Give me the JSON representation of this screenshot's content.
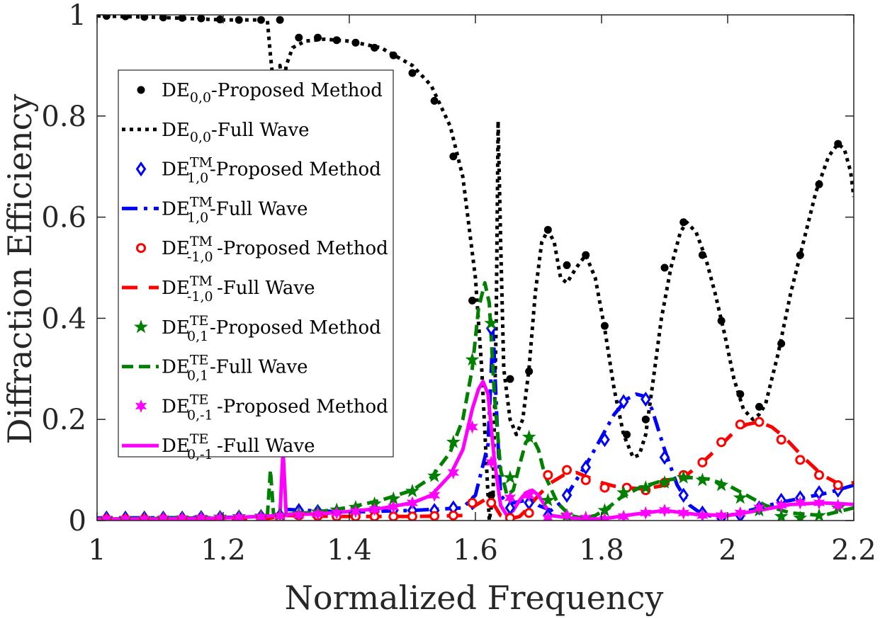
{
  "chart_data": {
    "type": "line",
    "xlabel": "Normalized Frequency",
    "ylabel": "Diffraction Efficiency",
    "xlim": [
      1,
      2.2
    ],
    "ylim": [
      0,
      1
    ],
    "grid": false,
    "legend_position": "upper-left",
    "x_ticks": [
      1,
      1.2,
      1.4,
      1.6,
      1.8,
      2,
      2.2
    ],
    "x_tick_labels": [
      "1",
      "1.2",
      "1.4",
      "1.6",
      "1.8",
      "2",
      "2.2"
    ],
    "y_ticks": [
      0,
      0.2,
      0.4,
      0.6,
      0.8,
      1
    ],
    "y_tick_labels": [
      "0",
      "0.2",
      "0.4",
      "0.6",
      "0.8",
      "1"
    ],
    "series": [
      {
        "name": "DE0,0-Proposed Method",
        "base": "DE",
        "sup": "",
        "sub": "0,0",
        "suffix": "-Proposed Method",
        "kind": "marker",
        "marker": "dot",
        "color": "#000000",
        "x": [
          1.015,
          1.045,
          1.075,
          1.105,
          1.135,
          1.165,
          1.195,
          1.225,
          1.26,
          1.29,
          1.32,
          1.35,
          1.38,
          1.41,
          1.44,
          1.47,
          1.5,
          1.535,
          1.565,
          1.595,
          1.625,
          1.655,
          1.685,
          1.715,
          1.745,
          1.775,
          1.805,
          1.84,
          1.87,
          1.9,
          1.93,
          1.96,
          1.99,
          2.02,
          2.05,
          2.085,
          2.115,
          2.145,
          2.175
        ],
        "y": [
          0.998,
          0.997,
          0.996,
          0.995,
          0.994,
          0.993,
          0.991,
          0.99,
          0.99,
          0.99,
          0.955,
          0.955,
          0.95,
          0.945,
          0.935,
          0.92,
          0.885,
          0.83,
          0.72,
          0.435,
          0.05,
          0.28,
          0.295,
          0.575,
          0.505,
          0.525,
          0.385,
          0.17,
          0.2,
          0.5,
          0.59,
          0.525,
          0.395,
          0.25,
          0.225,
          0.35,
          0.525,
          0.665,
          0.745
        ]
      },
      {
        "name": "DE0,0-Full Wave",
        "base": "DE",
        "sup": "",
        "sub": "0,0",
        "suffix": "-Full Wave",
        "kind": "line",
        "dash": "5 6",
        "width": 5,
        "color": "#000000",
        "x": [
          1.0,
          1.1,
          1.2,
          1.26,
          1.27,
          1.275,
          1.28,
          1.285,
          1.29,
          1.295,
          1.3,
          1.31,
          1.33,
          1.36,
          1.4,
          1.45,
          1.5,
          1.53,
          1.56,
          1.58,
          1.6,
          1.61,
          1.618,
          1.622,
          1.628,
          1.633,
          1.636,
          1.64,
          1.645,
          1.655,
          1.665,
          1.675,
          1.685,
          1.695,
          1.705,
          1.715,
          1.725,
          1.735,
          1.745,
          1.76,
          1.775,
          1.79,
          1.805,
          1.82,
          1.835,
          1.85,
          1.86,
          1.87,
          1.88,
          1.895,
          1.91,
          1.925,
          1.935,
          1.95,
          1.965,
          1.98,
          1.995,
          2.01,
          2.025,
          2.04,
          2.05,
          2.06,
          2.08,
          2.1,
          2.12,
          2.14,
          2.16,
          2.175,
          2.185,
          2.195,
          2.2
        ],
        "y": [
          0.998,
          0.995,
          0.99,
          0.99,
          0.99,
          0.92,
          0.86,
          0.88,
          0.9,
          0.85,
          0.9,
          0.935,
          0.948,
          0.952,
          0.948,
          0.935,
          0.9,
          0.86,
          0.78,
          0.68,
          0.48,
          0.3,
          0.1,
          0.0,
          0.05,
          0.4,
          0.79,
          0.55,
          0.3,
          0.2,
          0.17,
          0.2,
          0.3,
          0.45,
          0.55,
          0.575,
          0.55,
          0.48,
          0.47,
          0.5,
          0.525,
          0.48,
          0.38,
          0.26,
          0.17,
          0.125,
          0.13,
          0.17,
          0.26,
          0.4,
          0.5,
          0.57,
          0.59,
          0.57,
          0.52,
          0.45,
          0.37,
          0.28,
          0.22,
          0.2,
          0.21,
          0.23,
          0.33,
          0.45,
          0.55,
          0.65,
          0.72,
          0.745,
          0.735,
          0.69,
          0.64
        ]
      },
      {
        "name": "DE1,0TM-Proposed Method",
        "base": "DE",
        "sup": "TM",
        "sub": "1,0",
        "suffix": "-Proposed Method",
        "kind": "marker",
        "marker": "diamond",
        "color": "#0000ff",
        "x": [
          1.015,
          1.045,
          1.075,
          1.105,
          1.135,
          1.165,
          1.195,
          1.225,
          1.26,
          1.29,
          1.32,
          1.35,
          1.38,
          1.41,
          1.44,
          1.47,
          1.5,
          1.535,
          1.565,
          1.595,
          1.625,
          1.655,
          1.685,
          1.715,
          1.745,
          1.775,
          1.805,
          1.835,
          1.87,
          1.9,
          1.93,
          1.96,
          1.99,
          2.02,
          2.05,
          2.085,
          2.115,
          2.145,
          2.175
        ],
        "y": [
          0.005,
          0.005,
          0.005,
          0.005,
          0.005,
          0.006,
          0.006,
          0.007,
          0.008,
          0.01,
          0.02,
          0.018,
          0.017,
          0.017,
          0.018,
          0.02,
          0.02,
          0.02,
          0.025,
          0.035,
          0.38,
          0.025,
          0.035,
          0.01,
          0.05,
          0.105,
          0.16,
          0.235,
          0.24,
          0.125,
          0.05,
          0.015,
          0.005,
          0.01,
          0.025,
          0.04,
          0.045,
          0.055,
          0.06
        ]
      },
      {
        "name": "DE1,0TM-Full Wave",
        "base": "DE",
        "sup": "TM",
        "sub": "1,0",
        "suffix": "-Full Wave",
        "kind": "line",
        "dash": "22 9 5 9",
        "width": 5,
        "color": "#0000ff",
        "x": [
          1.0,
          1.2,
          1.27,
          1.29,
          1.3,
          1.33,
          1.4,
          1.5,
          1.58,
          1.6,
          1.62,
          1.628,
          1.634,
          1.64,
          1.65,
          1.66,
          1.68,
          1.69,
          1.7,
          1.72,
          1.74,
          1.76,
          1.78,
          1.8,
          1.82,
          1.84,
          1.855,
          1.87,
          1.88,
          1.9,
          1.92,
          1.94,
          1.96,
          1.98,
          2.0,
          2.02,
          2.05,
          2.08,
          2.12,
          2.16,
          2.2
        ],
        "y": [
          0.005,
          0.006,
          0.008,
          0.01,
          0.022,
          0.02,
          0.017,
          0.02,
          0.025,
          0.05,
          0.15,
          0.38,
          0.2,
          0.05,
          0.035,
          0.035,
          0.04,
          0.04,
          0.03,
          0.02,
          0.04,
          0.08,
          0.12,
          0.165,
          0.21,
          0.24,
          0.25,
          0.245,
          0.22,
          0.14,
          0.07,
          0.03,
          0.012,
          0.008,
          0.01,
          0.015,
          0.025,
          0.035,
          0.045,
          0.055,
          0.07
        ]
      },
      {
        "name": "DE-1,0TM-Proposed Method",
        "base": "DE",
        "sup": "TM",
        "sub": "-1,0",
        "suffix": "-Proposed Method",
        "kind": "marker",
        "marker": "circle",
        "color": "#ff0000",
        "x": [
          1.015,
          1.045,
          1.075,
          1.105,
          1.135,
          1.165,
          1.195,
          1.225,
          1.26,
          1.29,
          1.32,
          1.35,
          1.38,
          1.41,
          1.44,
          1.47,
          1.5,
          1.535,
          1.565,
          1.595,
          1.625,
          1.655,
          1.685,
          1.715,
          1.745,
          1.775,
          1.805,
          1.84,
          1.87,
          1.9,
          1.93,
          1.96,
          1.99,
          2.02,
          2.05,
          2.085,
          2.115,
          2.145,
          2.175
        ],
        "y": [
          0.003,
          0.003,
          0.003,
          0.003,
          0.003,
          0.003,
          0.003,
          0.003,
          0.004,
          0.005,
          0.01,
          0.009,
          0.008,
          0.008,
          0.008,
          0.008,
          0.008,
          0.009,
          0.01,
          0.035,
          0.035,
          0.005,
          0.015,
          0.09,
          0.1,
          0.08,
          0.065,
          0.065,
          0.06,
          0.075,
          0.09,
          0.115,
          0.155,
          0.19,
          0.195,
          0.16,
          0.12,
          0.09,
          0.07
        ]
      },
      {
        "name": "DE-1,0TM-Full Wave",
        "base": "DE",
        "sup": "TM",
        "sub": "-1,0",
        "suffix": "-Full Wave",
        "kind": "line",
        "dash": "22 16",
        "width": 5,
        "color": "#ff0000",
        "x": [
          1.0,
          1.2,
          1.27,
          1.3,
          1.4,
          1.5,
          1.58,
          1.6,
          1.62,
          1.63,
          1.64,
          1.65,
          1.66,
          1.67,
          1.68,
          1.7,
          1.72,
          1.74,
          1.76,
          1.78,
          1.8,
          1.82,
          1.84,
          1.86,
          1.88,
          1.9,
          1.93,
          1.96,
          1.99,
          2.01,
          2.03,
          2.05,
          2.07,
          2.09,
          2.12,
          2.15,
          2.18,
          2.2
        ],
        "y": [
          0.003,
          0.003,
          0.004,
          0.01,
          0.008,
          0.008,
          0.01,
          0.03,
          0.045,
          0.03,
          0.01,
          0.005,
          0.005,
          0.008,
          0.02,
          0.05,
          0.075,
          0.09,
          0.095,
          0.085,
          0.075,
          0.068,
          0.065,
          0.063,
          0.065,
          0.07,
          0.085,
          0.115,
          0.15,
          0.175,
          0.19,
          0.195,
          0.185,
          0.165,
          0.125,
          0.09,
          0.07,
          0.075
        ]
      },
      {
        "name": "DE0,1TE-Proposed Method",
        "base": "DE",
        "sup": "TE",
        "sub": "0,1",
        "suffix": "-Proposed Method",
        "kind": "marker",
        "marker": "star5",
        "color": "#008000",
        "x": [
          1.015,
          1.045,
          1.075,
          1.105,
          1.135,
          1.165,
          1.195,
          1.225,
          1.26,
          1.29,
          1.32,
          1.35,
          1.38,
          1.41,
          1.44,
          1.47,
          1.5,
          1.535,
          1.565,
          1.595,
          1.625,
          1.655,
          1.685,
          1.715,
          1.745,
          1.775,
          1.805,
          1.835,
          1.87,
          1.9,
          1.93,
          1.96,
          1.99,
          2.02,
          2.05,
          2.085,
          2.115,
          2.145,
          2.175
        ],
        "y": [
          0.003,
          0.003,
          0.004,
          0.004,
          0.005,
          0.006,
          0.007,
          0.008,
          0.009,
          0.011,
          0.014,
          0.017,
          0.021,
          0.026,
          0.033,
          0.043,
          0.058,
          0.088,
          0.155,
          0.318,
          0.39,
          0.085,
          0.165,
          0.04,
          0.01,
          0.005,
          0.02,
          0.055,
          0.065,
          0.075,
          0.085,
          0.08,
          0.07,
          0.045,
          0.02,
          0.008,
          0.005,
          0.01,
          0.025
        ]
      },
      {
        "name": "DE0,1TE-Full Wave",
        "base": "DE",
        "sup": "TE",
        "sub": "0,1",
        "suffix": "-Full Wave",
        "kind": "line",
        "dash": "16 8",
        "width": 5,
        "color": "#008000",
        "x": [
          1.0,
          1.1,
          1.2,
          1.27,
          1.275,
          1.28,
          1.285,
          1.3,
          1.35,
          1.4,
          1.45,
          1.5,
          1.53,
          1.56,
          1.58,
          1.595,
          1.605,
          1.615,
          1.622,
          1.63,
          1.64,
          1.65,
          1.66,
          1.67,
          1.68,
          1.69,
          1.7,
          1.71,
          1.73,
          1.75,
          1.77,
          1.79,
          1.81,
          1.83,
          1.86,
          1.9,
          1.94,
          1.97,
          2.0,
          2.03,
          2.06,
          2.1,
          2.15,
          2.2
        ],
        "y": [
          0.003,
          0.004,
          0.006,
          0.008,
          0.1,
          0.01,
          0.01,
          0.012,
          0.017,
          0.026,
          0.04,
          0.06,
          0.085,
          0.135,
          0.2,
          0.3,
          0.42,
          0.47,
          0.43,
          0.25,
          0.1,
          0.05,
          0.06,
          0.11,
          0.155,
          0.165,
          0.14,
          0.09,
          0.035,
          0.01,
          0.005,
          0.01,
          0.025,
          0.045,
          0.065,
          0.08,
          0.085,
          0.082,
          0.07,
          0.05,
          0.03,
          0.015,
          0.01,
          0.025
        ]
      },
      {
        "name": "DE0,-1TE-Proposed Method",
        "base": "DE",
        "sup": "TE",
        "sub": "0,-1",
        "suffix": "-Proposed Method",
        "kind": "marker",
        "marker": "star6",
        "color": "#ff00ff",
        "x": [
          1.015,
          1.045,
          1.075,
          1.105,
          1.135,
          1.165,
          1.195,
          1.225,
          1.26,
          1.29,
          1.32,
          1.35,
          1.38,
          1.41,
          1.44,
          1.47,
          1.5,
          1.535,
          1.565,
          1.595,
          1.625,
          1.655,
          1.685,
          1.715,
          1.745,
          1.775,
          1.805,
          1.835,
          1.87,
          1.9,
          1.93,
          1.96,
          1.99,
          2.02,
          2.05,
          2.085,
          2.115,
          2.145,
          2.175
        ],
        "y": [
          0.003,
          0.003,
          0.003,
          0.004,
          0.004,
          0.005,
          0.005,
          0.006,
          0.007,
          0.009,
          0.011,
          0.013,
          0.015,
          0.018,
          0.022,
          0.027,
          0.035,
          0.05,
          0.095,
          0.185,
          0.115,
          0.045,
          0.05,
          0.005,
          0.01,
          0.005,
          0.003,
          0.008,
          0.015,
          0.02,
          0.015,
          0.01,
          0.01,
          0.015,
          0.025,
          0.03,
          0.035,
          0.035,
          0.03
        ]
      },
      {
        "name": "DE0,-1TE-Full Wave",
        "base": "DE",
        "sup": "TE",
        "sub": "0,-1",
        "suffix": "-Full Wave",
        "kind": "line",
        "dash": "",
        "width": 5,
        "color": "#ff00ff",
        "x": [
          1.0,
          1.1,
          1.2,
          1.29,
          1.295,
          1.3,
          1.305,
          1.35,
          1.4,
          1.45,
          1.5,
          1.53,
          1.56,
          1.58,
          1.595,
          1.605,
          1.612,
          1.62,
          1.63,
          1.64,
          1.65,
          1.66,
          1.67,
          1.68,
          1.69,
          1.7,
          1.72,
          1.75,
          1.8,
          1.85,
          1.9,
          1.95,
          2.0,
          2.05,
          2.1,
          2.15,
          2.2
        ],
        "y": [
          0.003,
          0.003,
          0.005,
          0.01,
          0.14,
          0.01,
          0.012,
          0.013,
          0.018,
          0.024,
          0.035,
          0.05,
          0.09,
          0.14,
          0.22,
          0.26,
          0.275,
          0.25,
          0.12,
          0.03,
          0.01,
          0.02,
          0.04,
          0.055,
          0.06,
          0.05,
          0.01,
          0.005,
          0.003,
          0.012,
          0.02,
          0.012,
          0.01,
          0.02,
          0.032,
          0.035,
          0.032
        ]
      }
    ]
  }
}
